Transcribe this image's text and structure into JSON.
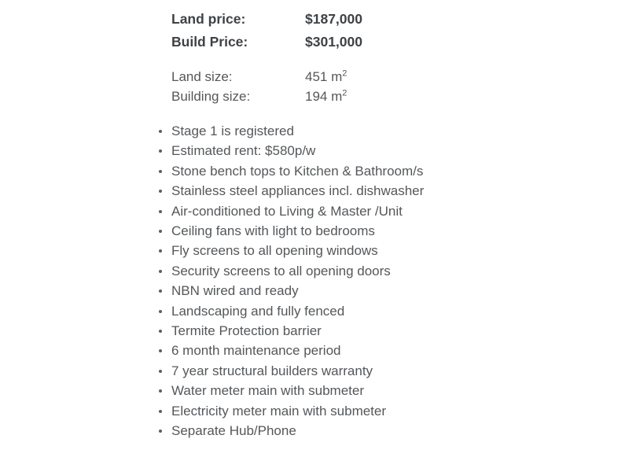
{
  "colors": {
    "background": "#ffffff",
    "text": "#54575a",
    "bold_text": "#3f4245"
  },
  "pricing": {
    "rows": [
      {
        "label": "Land price:",
        "value": "$187,000"
      },
      {
        "label": "Build Price:",
        "value": "$301,000"
      }
    ]
  },
  "sizes": {
    "rows": [
      {
        "label": "Land size:",
        "value": "451 m",
        "superscript": "2"
      },
      {
        "label": "Building size:",
        "value": "194 m",
        "superscript": "2"
      }
    ]
  },
  "features": {
    "items": [
      "Stage 1 is registered",
      "Estimated rent: $580p/w",
      "Stone bench tops to Kitchen & Bathroom/s",
      "Stainless steel appliances incl. dishwasher",
      "Air-conditioned to Living & Master /Unit",
      "Ceiling fans with light to bedrooms",
      "Fly screens to all opening windows",
      "Security screens to all opening doors",
      "NBN wired and ready",
      "Landscaping and fully fenced",
      "Termite Protection barrier",
      "6 month maintenance period",
      "7 year structural builders warranty",
      "Water meter main with submeter",
      "Electricity meter main with submeter",
      "Separate Hub/Phone"
    ]
  }
}
